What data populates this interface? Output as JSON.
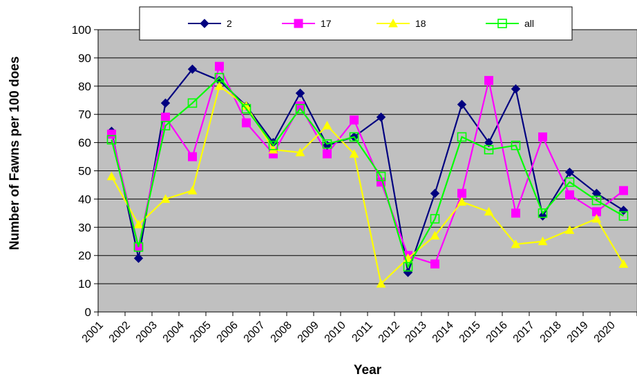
{
  "chart_data": {
    "type": "line",
    "title": "",
    "xlabel": "Year",
    "ylabel": "Number of Fawns per 100 does",
    "ylim": [
      0,
      100
    ],
    "yticks": [
      0,
      10,
      20,
      30,
      40,
      50,
      60,
      70,
      80,
      90,
      100
    ],
    "categories": [
      "2001",
      "2002",
      "2003",
      "2004",
      "2005",
      "2006",
      "2007",
      "2008",
      "2009",
      "2010",
      "2011",
      "2012",
      "2013",
      "2014",
      "2015",
      "2016",
      "2017",
      "2018",
      "2019",
      "2020"
    ],
    "grid": true,
    "legend_position": "top",
    "plot_background": "#c0c0c0",
    "series": [
      {
        "name": "2",
        "color": "#000080",
        "marker": "diamond",
        "values": [
          64,
          19,
          74,
          86,
          82,
          73,
          60,
          77.5,
          59,
          62,
          69,
          14,
          42,
          73.5,
          60,
          79,
          34,
          49.5,
          42,
          36
        ]
      },
      {
        "name": "17",
        "color": "#ff00ff",
        "marker": "square",
        "values": [
          63,
          23,
          69,
          55,
          87,
          67,
          56,
          73,
          56,
          68,
          46,
          20,
          17,
          42,
          82,
          35,
          62,
          41.5,
          35.5,
          43
        ]
      },
      {
        "name": "18",
        "color": "#ffff00",
        "marker": "triangle",
        "values": [
          48,
          31,
          40,
          43,
          80,
          73,
          57.5,
          56.5,
          66,
          56,
          10,
          19,
          27,
          39,
          35.5,
          24,
          25,
          29,
          33,
          17
        ]
      },
      {
        "name": "all",
        "color": "#00ff00",
        "marker": "open-square",
        "values": [
          61,
          23,
          66,
          74,
          83,
          72,
          59,
          72,
          59.5,
          62,
          48,
          16,
          33,
          62,
          57.5,
          59,
          35,
          46,
          39.5,
          34
        ]
      }
    ]
  }
}
